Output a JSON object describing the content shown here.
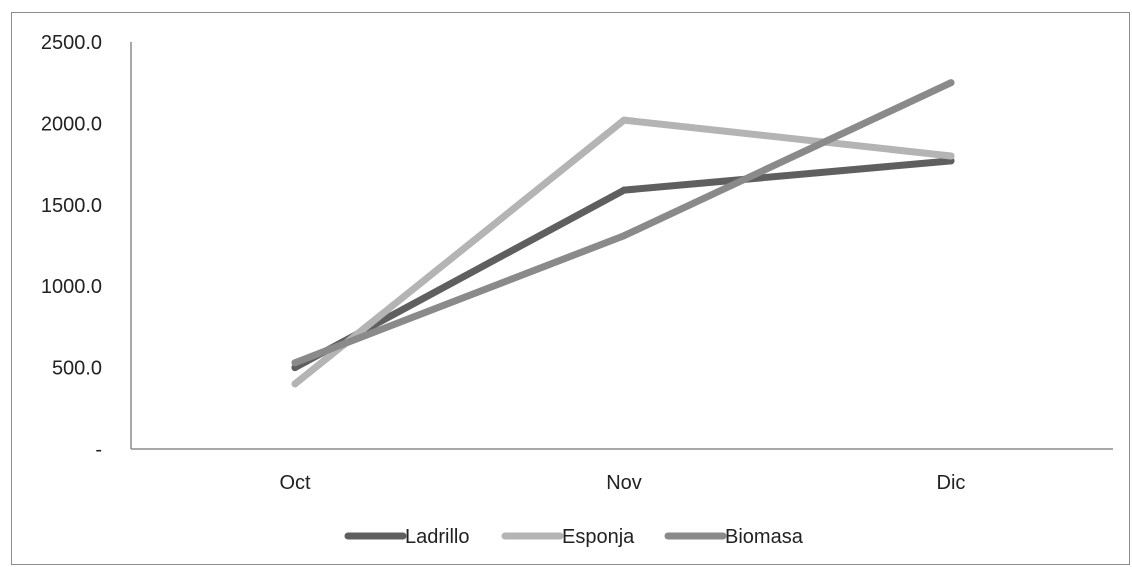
{
  "chart_data": {
    "type": "line",
    "categories": [
      "Oct",
      "Nov",
      "Dic"
    ],
    "series": [
      {
        "name": "Ladrillo",
        "values": [
          500,
          1590,
          1770
        ],
        "color": "#5f5f5f"
      },
      {
        "name": "Esponja",
        "values": [
          400,
          2020,
          1800
        ],
        "color": "#b4b4b4"
      },
      {
        "name": "Biomasa",
        "values": [
          530,
          1310,
          2250
        ],
        "color": "#8a8a8a"
      }
    ],
    "y_tick_labels": [
      "-",
      "500.0",
      "1000.0",
      "1500.0",
      "2000.0",
      "2500.0"
    ],
    "y_ticks": [
      0,
      500,
      1000,
      1500,
      2000,
      2500
    ],
    "ylim": [
      0,
      2500
    ],
    "grid": false,
    "legend_position": "bottom",
    "title": "",
    "xlabel": "",
    "ylabel": ""
  }
}
